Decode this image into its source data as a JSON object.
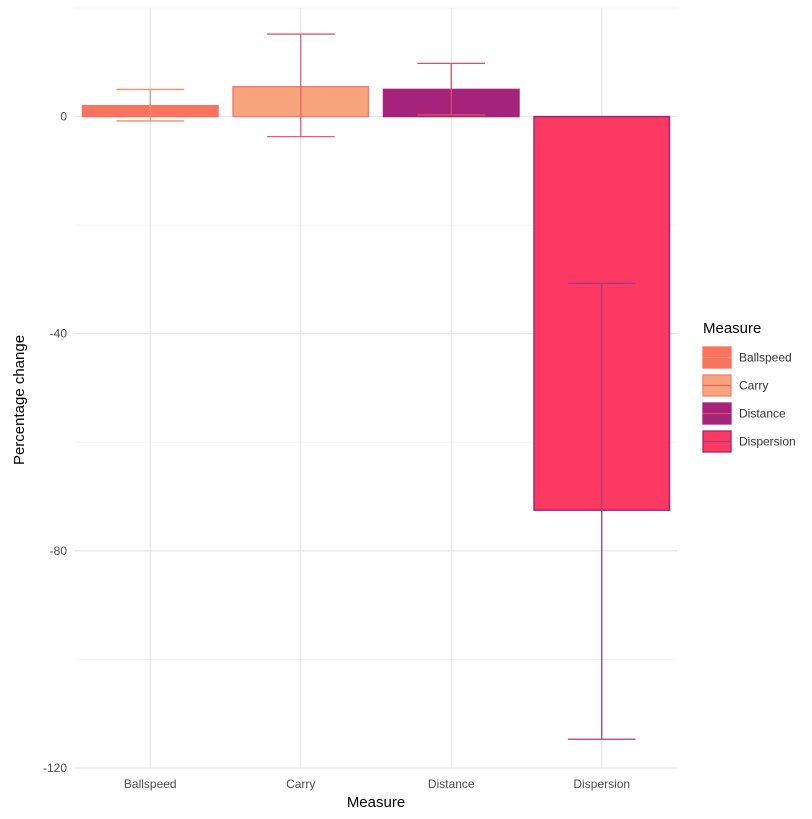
{
  "chart_data": {
    "type": "bar",
    "categories": [
      "Ballspeed",
      "Carry",
      "Distance",
      "Dispersion"
    ],
    "values": [
      2.0,
      5.5,
      5.0,
      -72.5
    ],
    "error_low": [
      -0.8,
      -3.7,
      0.3,
      -114.7
    ],
    "error_high": [
      5.0,
      15.2,
      9.8,
      -30.7
    ],
    "title": "",
    "xlabel": "Measure",
    "ylabel": "Percentage change",
    "ylim": [
      -120,
      20
    ],
    "yticks": [
      0,
      -40,
      -80,
      -120
    ],
    "ytick_labels": [
      "0",
      "-40",
      "-80",
      "-120"
    ],
    "grid": true,
    "legend": {
      "title": "Measure",
      "placement": "right",
      "entries": [
        "Ballspeed",
        "Carry",
        "Distance",
        "Dispersion"
      ]
    },
    "colors": {
      "fill": [
        "#f9735f",
        "#f8a57e",
        "#a5237a",
        "#fc3963"
      ],
      "outline": [
        "#f8735e",
        "#ef7f7a",
        "#a5237a",
        "#a5237a"
      ],
      "error_bar": [
        "#f28d6f",
        "#e25f6c",
        "#dc4e66",
        "#a73b80"
      ]
    }
  }
}
